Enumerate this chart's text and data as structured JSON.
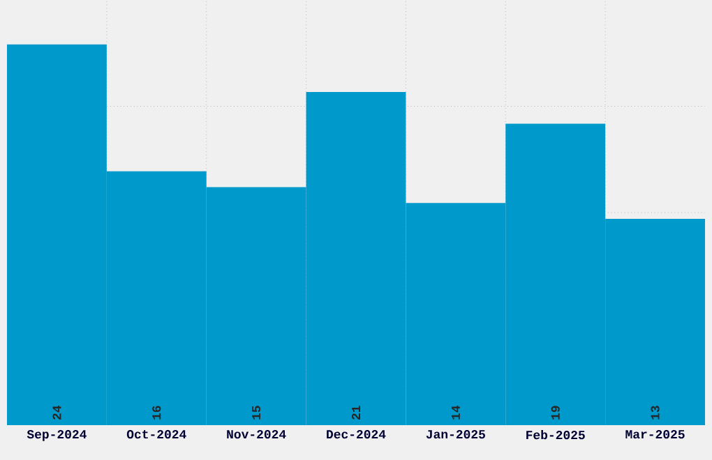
{
  "chart_data": {
    "type": "bar",
    "categories": [
      "Sep-2024",
      "Oct-2024",
      "Nov-2024",
      "Dec-2024",
      "Jan-2025",
      "Feb-2025",
      "Mar-2025"
    ],
    "values": [
      24,
      16,
      15,
      21,
      14,
      19,
      13
    ],
    "color": "#0099cc",
    "ylim": [
      0,
      26.8
    ],
    "yticks": [
      {
        "value": 6.7,
        "label": null
      },
      {
        "value": 13.4,
        "label": null
      },
      {
        "value": 20.1,
        "label": null
      }
    ],
    "grid": true,
    "data_labels": true,
    "tick_labels": "x"
  }
}
